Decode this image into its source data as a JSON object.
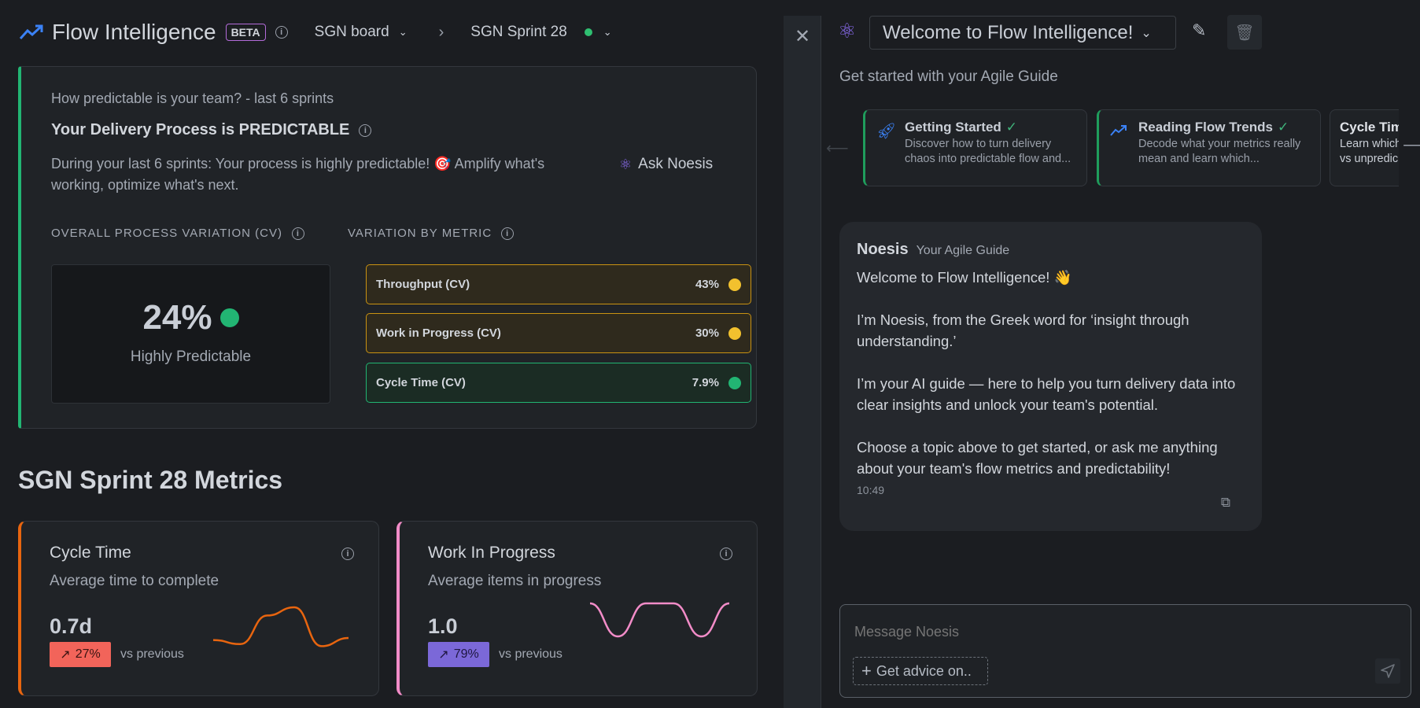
{
  "header": {
    "title": "Flow Intelligence",
    "badge": "BETA",
    "board": "SGN board",
    "sprint": "SGN Sprint 28",
    "sprint_status_color": "#2fbf71"
  },
  "predictability": {
    "subtitle": "How predictable is your team? - last 6 sprints",
    "heading": "Your Delivery Process is PREDICTABLE",
    "description": "During your last 6 sprints: Your process is highly predictable! 🎯 Amplify what's working, optimize what's next.",
    "ask_button": "Ask Noesis",
    "overall_label": "OVERALL PROCESS VARIATION (CV)",
    "overall_value": "24%",
    "overall_status": "Highly Predictable",
    "overall_color": "#22b573",
    "by_metric_label": "VARIATION BY METRIC",
    "metrics": [
      {
        "label": "Throughput (CV)",
        "value": "43%",
        "color": "#f2c12e"
      },
      {
        "label": "Work in Progress (CV)",
        "value": "30%",
        "color": "#f2c12e"
      },
      {
        "label": "Cycle Time (CV)",
        "value": "7.9%",
        "color": "#22b573"
      }
    ]
  },
  "sprint_metrics": {
    "title": "SGN Sprint 28 Metrics",
    "cards": [
      {
        "title": "Cycle Time",
        "subtitle": "Average time to complete",
        "value": "0.7d",
        "change": "27%",
        "change_dir": "up",
        "vs": "vs previous",
        "accent": "#e8650f",
        "badge_color": "#f2645a",
        "trend": [
          0.2,
          0.1,
          0.8,
          1,
          0.05,
          0.25
        ]
      },
      {
        "title": "Work In Progress",
        "subtitle": "Average items in progress",
        "value": "1.0",
        "change": "79%",
        "change_dir": "up",
        "vs": "vs previous",
        "accent": "#f28cc8",
        "badge_color": "#7b68d8",
        "trend": [
          1,
          0,
          1,
          1,
          0,
          1
        ]
      }
    ]
  },
  "chat": {
    "conversation_title": "Welcome to Flow Intelligence!",
    "guide_heading": "Get started with your Agile Guide",
    "topics": [
      {
        "title": "Getting Started",
        "desc": "Discover how to turn delivery chaos into predictable flow and...",
        "completed": true,
        "icon": "rocket-icon"
      },
      {
        "title": "Reading Flow Trends",
        "desc": "Decode what your metrics really mean and learn which...",
        "completed": true,
        "icon": "trend-icon"
      },
      {
        "title": "Cycle Tim",
        "desc": "Learn which vs unpredic",
        "completed": false
      }
    ],
    "message": {
      "sender": "Noesis",
      "role": "Your Agile Guide",
      "paragraphs": [
        "Welcome to Flow Intelligence! 👋",
        "I’m Noesis, from the Greek word for ‘insight through understanding.’",
        "I’m your AI guide — here to help you turn delivery data into clear insights and unlock your team's potential.",
        "Choose a topic above to get started, or ask me anything about your team's flow metrics and predictability!"
      ],
      "time": "10:49"
    },
    "input_placeholder": "Message Noesis",
    "advice_button": "Get advice on.."
  }
}
